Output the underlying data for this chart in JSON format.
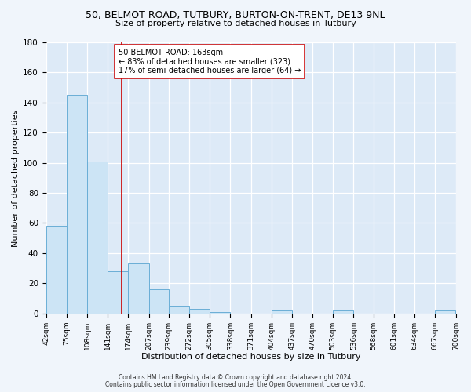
{
  "title1": "50, BELMOT ROAD, TUTBURY, BURTON-ON-TRENT, DE13 9NL",
  "title2": "Size of property relative to detached houses in Tutbury",
  "xlabel": "Distribution of detached houses by size in Tutbury",
  "ylabel": "Number of detached properties",
  "bin_edges": [
    42,
    75,
    108,
    141,
    174,
    207,
    239,
    272,
    305,
    338,
    371,
    404,
    437,
    470,
    503,
    536,
    568,
    601,
    634,
    667,
    700
  ],
  "bin_counts": [
    58,
    145,
    101,
    28,
    33,
    16,
    5,
    3,
    1,
    0,
    0,
    2,
    0,
    0,
    2,
    0,
    0,
    0,
    0,
    2
  ],
  "bar_facecolor": "#cce4f5",
  "bar_edgecolor": "#6aaed6",
  "property_line_x": 163,
  "property_line_color": "#cc0000",
  "annotation_line1": "50 BELMOT ROAD: 163sqm",
  "annotation_line2": "← 83% of detached houses are smaller (323)",
  "annotation_line3": "17% of semi-detached houses are larger (64) →",
  "annotation_box_edgecolor": "#cc0000",
  "annotation_box_facecolor": "#ffffff",
  "ylim": [
    0,
    180
  ],
  "yticks": [
    0,
    20,
    40,
    60,
    80,
    100,
    120,
    140,
    160,
    180
  ],
  "footer1": "Contains HM Land Registry data © Crown copyright and database right 2024.",
  "footer2": "Contains public sector information licensed under the Open Government Licence v3.0.",
  "bg_color": "#f0f5fb",
  "plot_bg_color": "#ddeaf7",
  "grid_color": "#ffffff",
  "title1_fontsize": 9,
  "title2_fontsize": 8,
  "xlabel_fontsize": 8,
  "ylabel_fontsize": 8,
  "tick_fontsize": 6.5,
  "ytick_fontsize": 7.5,
  "footer_fontsize": 5.5
}
